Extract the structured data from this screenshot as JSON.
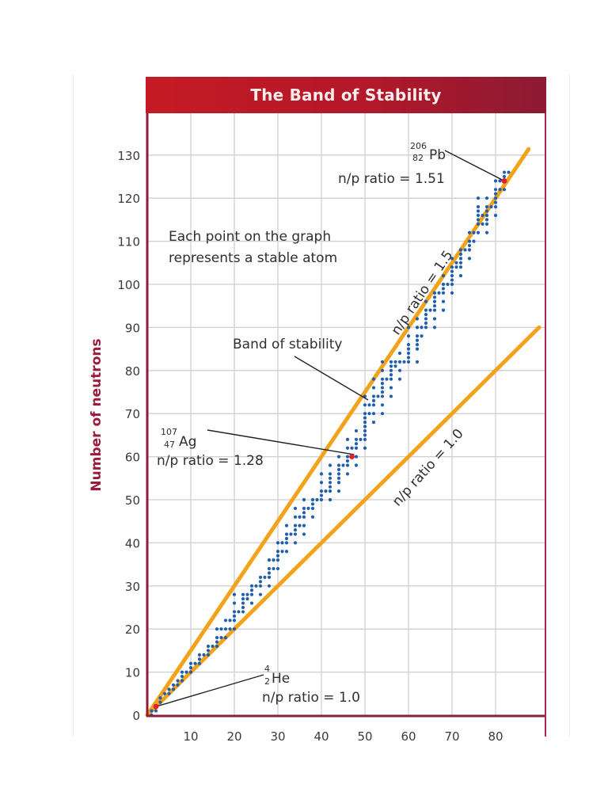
{
  "chart_data": {
    "type": "scatter",
    "title": "The Band of Stability",
    "xlabel": "",
    "ylabel": "Number of neutrons",
    "xlim": [
      0,
      90
    ],
    "ylim": [
      0,
      140
    ],
    "x_ticks": [
      10,
      20,
      30,
      40,
      50,
      60,
      70,
      80
    ],
    "y_ticks": [
      0,
      10,
      20,
      30,
      40,
      50,
      60,
      70,
      80,
      90,
      100,
      110,
      120,
      130
    ],
    "grid": true,
    "reference_lines": [
      {
        "name": "n/p ratio = 1.5",
        "slope": 1.5,
        "x_range": [
          0,
          87.6
        ],
        "color": "#f2a31b"
      },
      {
        "name": "n/p ratio = 1.0",
        "slope": 1.0,
        "x_range": [
          0,
          90
        ],
        "color": "#f2a31b"
      }
    ],
    "highlighted_points": [
      {
        "label": "He",
        "mass": "4",
        "atomic": "2",
        "Z": 2,
        "N": 2,
        "ratio_text": "n/p ratio = 1.0"
      },
      {
        "label": "Ag",
        "mass": "107",
        "atomic": "47",
        "Z": 47,
        "N": 60,
        "ratio_text": "n/p ratio = 1.28"
      },
      {
        "label": "Pb",
        "mass": "206",
        "atomic": "82",
        "Z": 82,
        "N": 124,
        "ratio_text": "n/p ratio = 1.51"
      }
    ],
    "band_series": {
      "name": "Stable atoms",
      "color": "#1f5fb0",
      "description": "Approximate stable nuclides (Z, N) forming the band of stability",
      "points": [
        [
          1,
          0
        ],
        [
          1,
          1
        ],
        [
          2,
          1
        ],
        [
          2,
          2
        ],
        [
          3,
          3
        ],
        [
          3,
          4
        ],
        [
          4,
          5
        ],
        [
          5,
          5
        ],
        [
          5,
          6
        ],
        [
          6,
          6
        ],
        [
          6,
          7
        ],
        [
          7,
          7
        ],
        [
          7,
          8
        ],
        [
          8,
          8
        ],
        [
          8,
          9
        ],
        [
          8,
          10
        ],
        [
          9,
          10
        ],
        [
          10,
          10
        ],
        [
          10,
          11
        ],
        [
          10,
          12
        ],
        [
          11,
          12
        ],
        [
          12,
          12
        ],
        [
          12,
          13
        ],
        [
          12,
          14
        ],
        [
          13,
          14
        ],
        [
          14,
          14
        ],
        [
          14,
          15
        ],
        [
          14,
          16
        ],
        [
          15,
          16
        ],
        [
          16,
          16
        ],
        [
          16,
          17
        ],
        [
          16,
          18
        ],
        [
          16,
          20
        ],
        [
          17,
          18
        ],
        [
          17,
          20
        ],
        [
          18,
          18
        ],
        [
          18,
          20
        ],
        [
          18,
          22
        ],
        [
          19,
          20
        ],
        [
          19,
          22
        ],
        [
          20,
          20
        ],
        [
          20,
          22
        ],
        [
          20,
          23
        ],
        [
          20,
          24
        ],
        [
          20,
          26
        ],
        [
          20,
          28
        ],
        [
          21,
          24
        ],
        [
          22,
          24
        ],
        [
          22,
          25
        ],
        [
          22,
          26
        ],
        [
          22,
          27
        ],
        [
          22,
          28
        ],
        [
          23,
          27
        ],
        [
          23,
          28
        ],
        [
          24,
          26
        ],
        [
          24,
          28
        ],
        [
          24,
          29
        ],
        [
          24,
          30
        ],
        [
          25,
          30
        ],
        [
          26,
          28
        ],
        [
          26,
          30
        ],
        [
          26,
          31
        ],
        [
          26,
          32
        ],
        [
          27,
          32
        ],
        [
          28,
          30
        ],
        [
          28,
          32
        ],
        [
          28,
          33
        ],
        [
          28,
          34
        ],
        [
          28,
          36
        ],
        [
          29,
          34
        ],
        [
          29,
          36
        ],
        [
          30,
          34
        ],
        [
          30,
          36
        ],
        [
          30,
          37
        ],
        [
          30,
          38
        ],
        [
          30,
          40
        ],
        [
          31,
          38
        ],
        [
          31,
          40
        ],
        [
          32,
          38
        ],
        [
          32,
          40
        ],
        [
          32,
          41
        ],
        [
          32,
          42
        ],
        [
          32,
          44
        ],
        [
          33,
          42
        ],
        [
          34,
          40
        ],
        [
          34,
          42
        ],
        [
          34,
          43
        ],
        [
          34,
          44
        ],
        [
          34,
          46
        ],
        [
          34,
          48
        ],
        [
          35,
          44
        ],
        [
          35,
          46
        ],
        [
          36,
          42
        ],
        [
          36,
          44
        ],
        [
          36,
          46
        ],
        [
          36,
          47
        ],
        [
          36,
          48
        ],
        [
          36,
          50
        ],
        [
          37,
          48
        ],
        [
          38,
          46
        ],
        [
          38,
          48
        ],
        [
          38,
          49
        ],
        [
          38,
          50
        ],
        [
          39,
          50
        ],
        [
          40,
          50
        ],
        [
          40,
          51
        ],
        [
          40,
          52
        ],
        [
          40,
          54
        ],
        [
          40,
          56
        ],
        [
          41,
          52
        ],
        [
          42,
          50
        ],
        [
          42,
          52
        ],
        [
          42,
          53
        ],
        [
          42,
          54
        ],
        [
          42,
          55
        ],
        [
          42,
          56
        ],
        [
          42,
          58
        ],
        [
          44,
          52
        ],
        [
          44,
          54
        ],
        [
          44,
          55
        ],
        [
          44,
          56
        ],
        [
          44,
          57
        ],
        [
          44,
          58
        ],
        [
          44,
          60
        ],
        [
          45,
          58
        ],
        [
          46,
          56
        ],
        [
          46,
          58
        ],
        [
          46,
          59
        ],
        [
          46,
          60
        ],
        [
          46,
          62
        ],
        [
          46,
          64
        ],
        [
          47,
          60
        ],
        [
          47,
          62
        ],
        [
          48,
          58
        ],
        [
          48,
          60
        ],
        [
          48,
          62
        ],
        [
          48,
          63
        ],
        [
          48,
          64
        ],
        [
          48,
          66
        ],
        [
          49,
          64
        ],
        [
          50,
          62
        ],
        [
          50,
          64
        ],
        [
          50,
          65
        ],
        [
          50,
          66
        ],
        [
          50,
          67
        ],
        [
          50,
          68
        ],
        [
          50,
          69
        ],
        [
          50,
          70
        ],
        [
          50,
          72
        ],
        [
          50,
          74
        ],
        [
          51,
          70
        ],
        [
          51,
          72
        ],
        [
          52,
          68
        ],
        [
          52,
          70
        ],
        [
          52,
          72
        ],
        [
          52,
          73
        ],
        [
          52,
          74
        ],
        [
          52,
          76
        ],
        [
          52,
          78
        ],
        [
          53,
          74
        ],
        [
          54,
          70
        ],
        [
          54,
          72
        ],
        [
          54,
          74
        ],
        [
          54,
          75
        ],
        [
          54,
          76
        ],
        [
          54,
          77
        ],
        [
          54,
          78
        ],
        [
          54,
          80
        ],
        [
          54,
          82
        ],
        [
          55,
          78
        ],
        [
          56,
          74
        ],
        [
          56,
          76
        ],
        [
          56,
          78
        ],
        [
          56,
          79
        ],
        [
          56,
          80
        ],
        [
          56,
          81
        ],
        [
          56,
          82
        ],
        [
          57,
          81
        ],
        [
          57,
          82
        ],
        [
          58,
          78
        ],
        [
          58,
          80
        ],
        [
          58,
          82
        ],
        [
          58,
          84
        ],
        [
          59,
          82
        ],
        [
          60,
          82
        ],
        [
          60,
          83
        ],
        [
          60,
          84
        ],
        [
          60,
          85
        ],
        [
          60,
          86
        ],
        [
          60,
          88
        ],
        [
          60,
          90
        ],
        [
          62,
          82
        ],
        [
          62,
          85
        ],
        [
          62,
          86
        ],
        [
          62,
          87
        ],
        [
          62,
          88
        ],
        [
          62,
          90
        ],
        [
          62,
          92
        ],
        [
          63,
          88
        ],
        [
          63,
          90
        ],
        [
          64,
          90
        ],
        [
          64,
          91
        ],
        [
          64,
          92
        ],
        [
          64,
          93
        ],
        [
          64,
          94
        ],
        [
          64,
          96
        ],
        [
          65,
          94
        ],
        [
          66,
          90
        ],
        [
          66,
          92
        ],
        [
          66,
          94
        ],
        [
          66,
          95
        ],
        [
          66,
          96
        ],
        [
          66,
          97
        ],
        [
          66,
          98
        ],
        [
          67,
          98
        ],
        [
          68,
          94
        ],
        [
          68,
          96
        ],
        [
          68,
          98
        ],
        [
          68,
          99
        ],
        [
          68,
          100
        ],
        [
          68,
          102
        ],
        [
          69,
          100
        ],
        [
          70,
          98
        ],
        [
          70,
          100
        ],
        [
          70,
          101
        ],
        [
          70,
          102
        ],
        [
          70,
          103
        ],
        [
          70,
          104
        ],
        [
          70,
          106
        ],
        [
          71,
          104
        ],
        [
          71,
          105
        ],
        [
          72,
          102
        ],
        [
          72,
          104
        ],
        [
          72,
          105
        ],
        [
          72,
          106
        ],
        [
          72,
          107
        ],
        [
          72,
          108
        ],
        [
          73,
          108
        ],
        [
          74,
          106
        ],
        [
          74,
          108
        ],
        [
          74,
          109
        ],
        [
          74,
          110
        ],
        [
          74,
          112
        ],
        [
          75,
          110
        ],
        [
          75,
          112
        ],
        [
          76,
          112
        ],
        [
          76,
          114
        ],
        [
          76,
          115
        ],
        [
          76,
          116
        ],
        [
          76,
          117
        ],
        [
          76,
          118
        ],
        [
          76,
          120
        ],
        [
          77,
          114
        ],
        [
          77,
          116
        ],
        [
          78,
          112
        ],
        [
          78,
          114
        ],
        [
          78,
          115
        ],
        [
          78,
          116
        ],
        [
          78,
          117
        ],
        [
          78,
          118
        ],
        [
          78,
          120
        ],
        [
          79,
          118
        ],
        [
          80,
          116
        ],
        [
          80,
          118
        ],
        [
          80,
          119
        ],
        [
          80,
          120
        ],
        [
          80,
          121
        ],
        [
          80,
          122
        ],
        [
          80,
          124
        ],
        [
          81,
          122
        ],
        [
          81,
          124
        ],
        [
          82,
          122
        ],
        [
          82,
          124
        ],
        [
          82,
          125
        ],
        [
          82,
          126
        ],
        [
          83,
          126
        ]
      ]
    }
  },
  "labels": {
    "title": "The Band of Stability",
    "ylabel": "Number of neutrons",
    "note_line1": "Each point on the graph",
    "note_line2": "represents a stable atom",
    "band_label": "Band of stability",
    "line15_label": "n/p ratio = 1.5",
    "line10_label": "n/p ratio = 1.0",
    "he_mass": "4",
    "he_atomic": "2",
    "he_symbol": "He",
    "he_ratio": "n/p ratio = 1.0",
    "ag_mass": "107",
    "ag_atomic": "47",
    "ag_symbol": "Ag",
    "ag_ratio": "n/p ratio = 1.28",
    "pb_mass": "206",
    "pb_atomic": "82",
    "pb_symbol": "Pb",
    "pb_ratio": "n/p ratio = 1.51"
  },
  "colors": {
    "title_bar": "#b3182a",
    "axis": "#8e1d3c",
    "grid": "#cfcfcf",
    "ref_line": "#f2a31b",
    "points": "#1f5fb0",
    "highlight": "#e0222e",
    "ylabel": "#9b1b3c"
  }
}
